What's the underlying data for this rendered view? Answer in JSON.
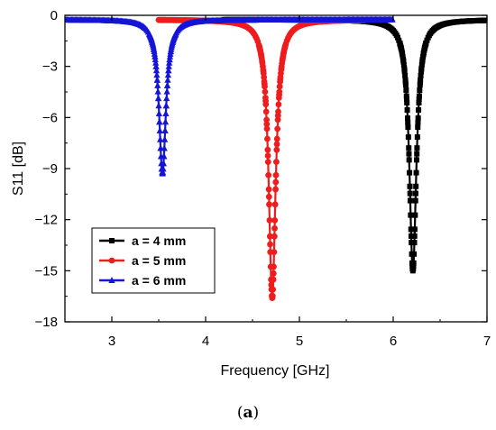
{
  "caption": {
    "open": "(",
    "letter": "a",
    "close": ")"
  },
  "chart_data": {
    "type": "line",
    "xlabel": "Frequency [GHz]",
    "ylabel": "S11 [dB]",
    "xlim": [
      2.5,
      7
    ],
    "ylim": [
      -18,
      0
    ],
    "xticks": [
      3,
      4,
      5,
      6,
      7
    ],
    "yticks": [
      0,
      -3,
      -6,
      -9,
      -12,
      -15,
      -18
    ],
    "grid": false,
    "legend_position": "bottom-left",
    "series": [
      {
        "name": "a = 4 mm",
        "color": "#000000",
        "marker": "square",
        "f0": 6.21,
        "min": -15.0,
        "range": [
          4.2,
          7.0
        ]
      },
      {
        "name": "a = 5 mm",
        "color": "#ee1c1c",
        "marker": "circle",
        "f0": 4.71,
        "min": -16.6,
        "range": [
          3.5,
          5.7
        ]
      },
      {
        "name": "a = 6 mm",
        "color": "#1515d8",
        "marker": "triangle",
        "f0": 3.54,
        "min": -9.3,
        "range": [
          2.5,
          6.0
        ]
      }
    ]
  }
}
